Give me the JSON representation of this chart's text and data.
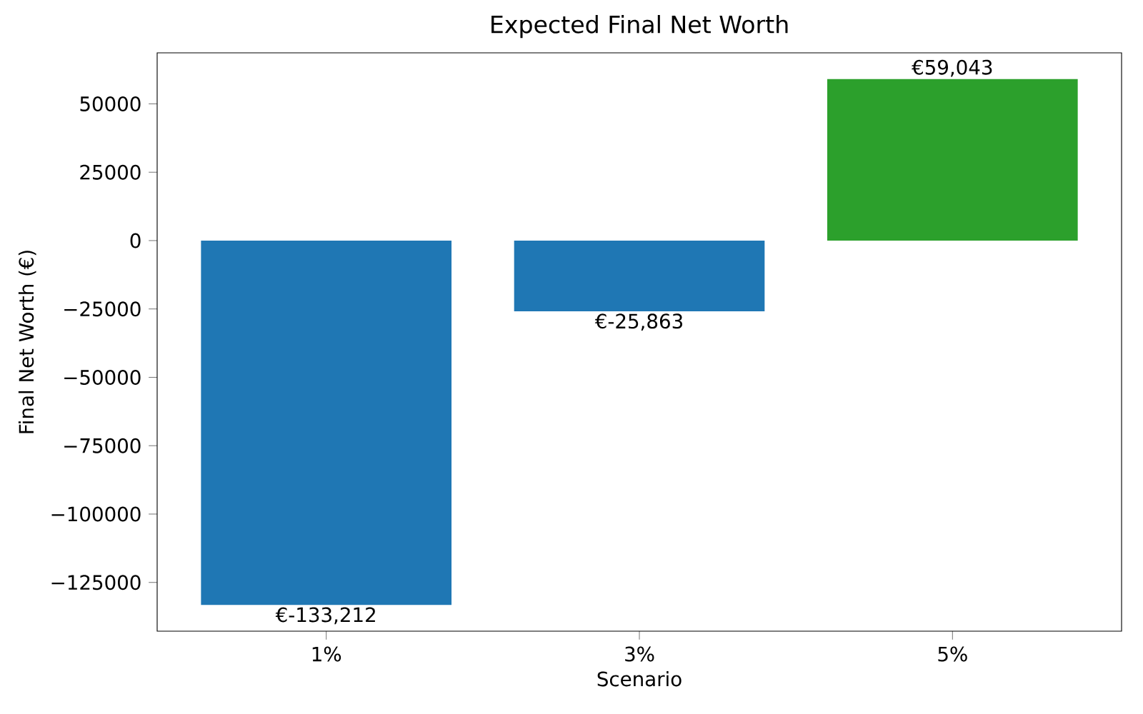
{
  "chart_data": {
    "type": "bar",
    "title": "Expected Final Net Worth",
    "xlabel": "Scenario",
    "ylabel": "Final Net Worth (€)",
    "categories": [
      "1%",
      "3%",
      "5%"
    ],
    "values": [
      -133212,
      -25863,
      59043
    ],
    "colors": [
      "#1f77b4",
      "#1f77b4",
      "#2ca02c"
    ],
    "value_labels": [
      "€-133,212",
      "€-25,863",
      "€59,043"
    ],
    "ylim": [
      -142825,
      68656
    ],
    "yticks": [
      {
        "value": -125000,
        "label": "−125000"
      },
      {
        "value": -100000,
        "label": "−100000"
      },
      {
        "value": -75000,
        "label": "−75000"
      },
      {
        "value": -50000,
        "label": "−50000"
      },
      {
        "value": -25000,
        "label": "−25000"
      },
      0,
      25000,
      50000
    ],
    "grid": false
  }
}
